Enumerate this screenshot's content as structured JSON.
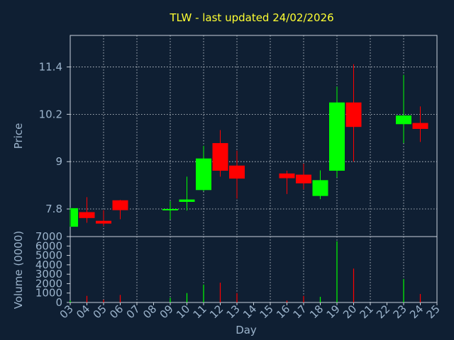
{
  "title": "TLW - last updated 24/02/2026",
  "chart_data": [
    {
      "type": "candlestick",
      "ylabel": "Price",
      "ylim": [
        7.1,
        12.2
      ],
      "yticks": [
        7.8,
        9,
        10.2,
        11.4
      ],
      "ytick_labels": [
        "7.8",
        "9",
        "10.2",
        "11.4"
      ],
      "grid": true,
      "up_color": "#00ff00",
      "down_color": "#ff0000",
      "candles": [
        {
          "day": 3,
          "open": 7.35,
          "high": 7.83,
          "low": 7.35,
          "close": 7.82
        },
        {
          "day": 4,
          "open": 7.72,
          "high": 8.1,
          "low": 7.45,
          "close": 7.57
        },
        {
          "day": 5,
          "open": 7.5,
          "high": 7.77,
          "low": 7.37,
          "close": 7.43
        },
        {
          "day": 6,
          "open": 8.02,
          "high": 8.03,
          "low": 7.54,
          "close": 7.77
        },
        {
          "day": 9,
          "open": 7.8,
          "high": 8.0,
          "low": 7.53,
          "close": 7.8
        },
        {
          "day": 10,
          "open": 7.98,
          "high": 8.62,
          "low": 7.76,
          "close": 8.04
        },
        {
          "day": 11,
          "open": 8.28,
          "high": 9.4,
          "low": 8.25,
          "close": 9.08
        },
        {
          "day": 12,
          "open": 9.47,
          "high": 9.8,
          "low": 8.62,
          "close": 8.77
        },
        {
          "day": 13,
          "open": 8.9,
          "high": 9.28,
          "low": 8.06,
          "close": 8.57
        },
        {
          "day": 16,
          "open": 8.7,
          "high": 8.77,
          "low": 8.18,
          "close": 8.58
        },
        {
          "day": 17,
          "open": 8.67,
          "high": 8.95,
          "low": 8.3,
          "close": 8.45
        },
        {
          "day": 18,
          "open": 8.13,
          "high": 8.78,
          "low": 8.05,
          "close": 8.53
        },
        {
          "day": 19,
          "open": 8.77,
          "high": 10.9,
          "low": 8.6,
          "close": 10.5
        },
        {
          "day": 20,
          "open": 10.5,
          "high": 11.47,
          "low": 9.0,
          "close": 9.88
        },
        {
          "day": 23,
          "open": 9.95,
          "high": 11.2,
          "low": 9.47,
          "close": 10.17
        },
        {
          "day": 24,
          "open": 9.98,
          "high": 10.4,
          "low": 9.5,
          "close": 9.83
        }
      ]
    },
    {
      "type": "bar",
      "ylabel": "Volume (0000)",
      "ylim": [
        0,
        7000
      ],
      "yticks": [
        0,
        1000,
        2000,
        3000,
        4000,
        5000,
        6000,
        7000
      ],
      "ytick_labels": [
        "0",
        "1000",
        "2000",
        "3000",
        "4000",
        "5000",
        "6000",
        "7000"
      ],
      "xlabel": "Day",
      "xticks": [
        3,
        4,
        5,
        6,
        7,
        8,
        9,
        10,
        11,
        12,
        13,
        14,
        15,
        16,
        17,
        18,
        19,
        20,
        21,
        22,
        23,
        24,
        25
      ],
      "xtick_labels": [
        "03",
        "04",
        "05",
        "06",
        "07",
        "08",
        "09",
        "10",
        "11",
        "12",
        "13",
        "14",
        "15",
        "16",
        "17",
        "18",
        "19",
        "20",
        "21",
        "22",
        "23",
        "24",
        "25"
      ],
      "grid": true,
      "bars": [
        {
          "day": 3,
          "value": 200,
          "direction": "up"
        },
        {
          "day": 4,
          "value": 700,
          "direction": "down"
        },
        {
          "day": 5,
          "value": 300,
          "direction": "down"
        },
        {
          "day": 6,
          "value": 800,
          "direction": "down"
        },
        {
          "day": 9,
          "value": 500,
          "direction": "up"
        },
        {
          "day": 10,
          "value": 1000,
          "direction": "up"
        },
        {
          "day": 11,
          "value": 1900,
          "direction": "up"
        },
        {
          "day": 12,
          "value": 2100,
          "direction": "down"
        },
        {
          "day": 13,
          "value": 1000,
          "direction": "down"
        },
        {
          "day": 16,
          "value": 200,
          "direction": "down"
        },
        {
          "day": 17,
          "value": 700,
          "direction": "down"
        },
        {
          "day": 18,
          "value": 600,
          "direction": "up"
        },
        {
          "day": 19,
          "value": 6500,
          "direction": "up"
        },
        {
          "day": 20,
          "value": 3600,
          "direction": "down"
        },
        {
          "day": 23,
          "value": 2500,
          "direction": "up"
        },
        {
          "day": 24,
          "value": 900,
          "direction": "down"
        }
      ]
    }
  ]
}
